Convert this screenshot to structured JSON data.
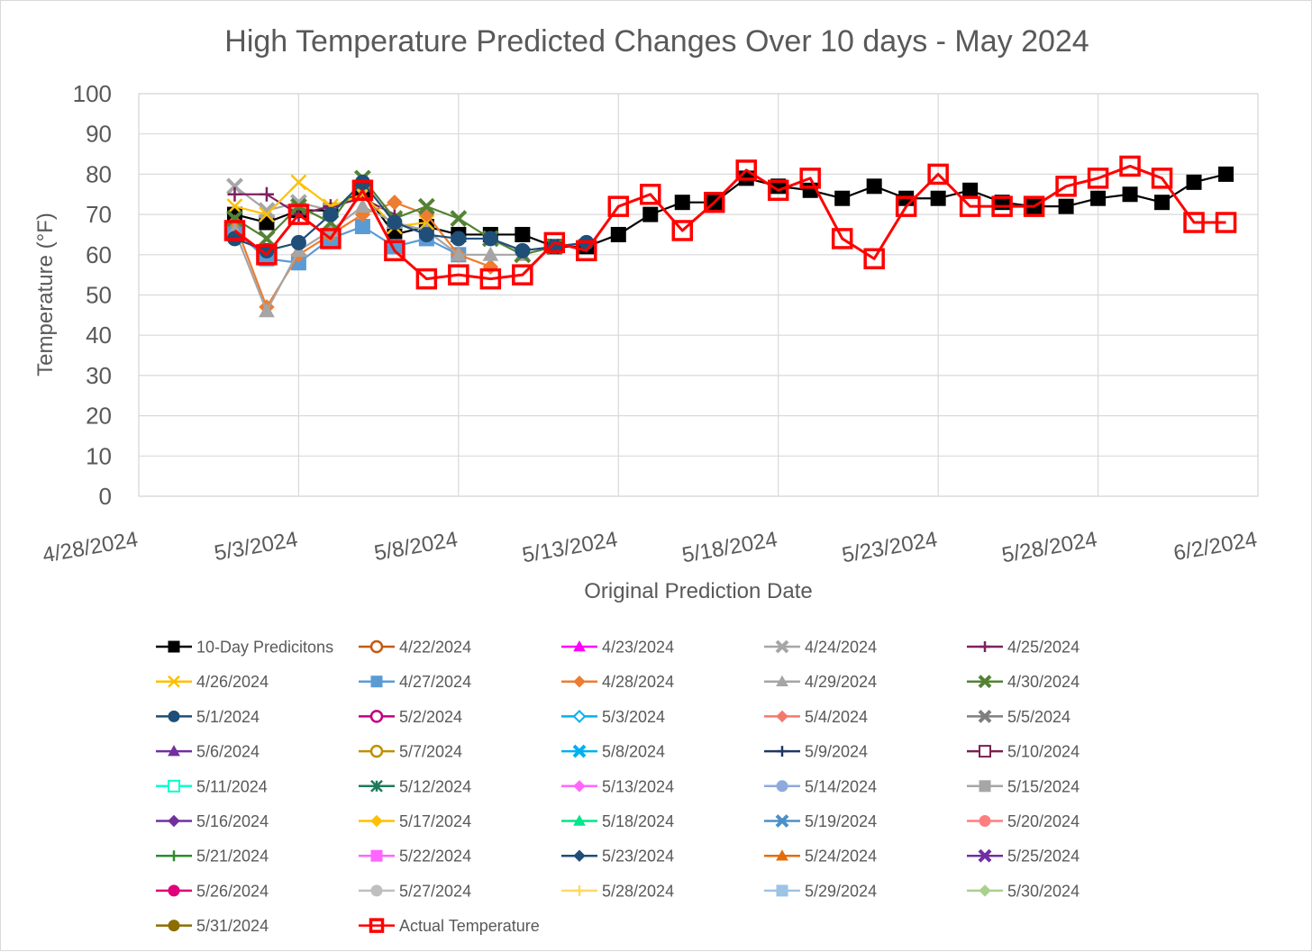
{
  "chart_data": {
    "type": "line",
    "title": "High Temperature Predicted Changes Over 10 days - May 2024",
    "xlabel": "Original Prediction Date",
    "ylabel": "Temperature (°F)",
    "ylim": [
      0,
      100
    ],
    "yticks": [
      "0",
      "10",
      "20",
      "30",
      "40",
      "50",
      "60",
      "70",
      "80",
      "90",
      "100"
    ],
    "xlim_day": [
      0,
      35
    ],
    "xticks": [
      {
        "label": "4/28/2024",
        "day": 0
      },
      {
        "label": "5/3/2024",
        "day": 5
      },
      {
        "label": "5/8/2024",
        "day": 10
      },
      {
        "label": "5/13/2024",
        "day": 15
      },
      {
        "label": "5/18/2024",
        "day": 20
      },
      {
        "label": "5/23/2024",
        "day": 25
      },
      {
        "label": "5/28/2024",
        "day": 30
      },
      {
        "label": "6/2/2024",
        "day": 35
      }
    ],
    "x_day_note": "x values are days since 4/28/2024",
    "series": [
      {
        "name": "10-Day Predicitons",
        "color": "#000000",
        "marker": "square-filled",
        "x": [
          3,
          4,
          5,
          6,
          7,
          8,
          9,
          10,
          11,
          12,
          13,
          14,
          15,
          16,
          17,
          18,
          19,
          20,
          21,
          22,
          23,
          24,
          25,
          26,
          27,
          28,
          29,
          30,
          31,
          32,
          33,
          34
        ],
        "y": [
          70,
          68,
          71,
          71,
          76,
          65,
          67,
          65,
          65,
          65,
          62,
          62,
          65,
          70,
          73,
          73,
          79,
          77,
          76,
          74,
          77,
          74,
          74,
          76,
          73,
          72,
          72,
          74,
          75,
          73,
          78,
          80
        ]
      },
      {
        "name": "4/22/2024",
        "color": "#c55a11",
        "marker": "circle-open",
        "x": [],
        "y": []
      },
      {
        "name": "4/23/2024",
        "color": "#ff00ff",
        "marker": "triangle-filled",
        "x": [],
        "y": []
      },
      {
        "name": "4/24/2024",
        "color": "#a6a6a6",
        "marker": "x-thick",
        "x": [
          3,
          4,
          5,
          6,
          7
        ],
        "y": [
          77,
          71,
          73,
          71,
          75
        ]
      },
      {
        "name": "4/25/2024",
        "color": "#7f2060",
        "marker": "plus",
        "x": [
          3,
          4,
          5,
          6,
          7,
          8
        ],
        "y": [
          75,
          75,
          70,
          72,
          74,
          70
        ]
      },
      {
        "name": "4/26/2024",
        "color": "#ffc000",
        "marker": "x",
        "x": [
          3,
          4,
          5,
          6,
          7,
          8,
          9
        ],
        "y": [
          72,
          70,
          78,
          72,
          75,
          67,
          68
        ]
      },
      {
        "name": "4/27/2024",
        "color": "#5b9bd5",
        "marker": "square-filled",
        "x": [
          3,
          4,
          5,
          6,
          7,
          8,
          9,
          10
        ],
        "y": [
          66,
          59,
          58,
          64,
          67,
          62,
          64,
          60
        ]
      },
      {
        "name": "4/28/2024",
        "color": "#ed7d31",
        "marker": "diamond-filled",
        "x": [
          3,
          4,
          5,
          6,
          7,
          8,
          9,
          10,
          11
        ],
        "y": [
          68,
          47,
          60,
          65,
          70,
          73,
          70,
          60,
          57
        ]
      },
      {
        "name": "4/29/2024",
        "color": "#a5a5a5",
        "marker": "triangle-filled",
        "x": [
          3,
          4,
          5,
          6,
          7,
          8,
          9,
          10,
          11,
          12
        ],
        "y": [
          66,
          46,
          61,
          66,
          72,
          68,
          66,
          60,
          60,
          60
        ]
      },
      {
        "name": "4/30/2024",
        "color": "#548235",
        "marker": "x-thick",
        "x": [
          3,
          4,
          5,
          6,
          7,
          8,
          9,
          10,
          11,
          12,
          13
        ],
        "y": [
          69,
          64,
          72,
          68,
          79,
          69,
          72,
          69,
          64,
          60,
          62
        ]
      },
      {
        "name": "5/1/2024",
        "color": "#1f4e79",
        "marker": "circle-filled",
        "x": [
          3,
          4,
          5,
          6,
          7,
          8,
          9,
          10,
          11,
          12,
          13,
          14
        ],
        "y": [
          64,
          61,
          63,
          70,
          78,
          68,
          65,
          64,
          64,
          61,
          62,
          63
        ]
      },
      {
        "name": "5/2/2024",
        "color": "#c00080",
        "marker": "circle-open",
        "x": [],
        "y": []
      },
      {
        "name": "5/3/2024",
        "color": "#00b0f0",
        "marker": "diamond-open",
        "x": [],
        "y": []
      },
      {
        "name": "5/4/2024",
        "color": "#f4796b",
        "marker": "diamond-filled",
        "x": [],
        "y": []
      },
      {
        "name": "5/5/2024",
        "color": "#7f7f7f",
        "marker": "x-thick",
        "x": [],
        "y": []
      },
      {
        "name": "5/6/2024",
        "color": "#7030a0",
        "marker": "triangle-filled",
        "x": [],
        "y": []
      },
      {
        "name": "5/7/2024",
        "color": "#bf9000",
        "marker": "circle-open",
        "x": [],
        "y": []
      },
      {
        "name": "5/8/2024",
        "color": "#00b0f0",
        "marker": "x-thick",
        "x": [],
        "y": []
      },
      {
        "name": "5/9/2024",
        "color": "#203864",
        "marker": "plus",
        "x": [],
        "y": []
      },
      {
        "name": "5/10/2024",
        "color": "#7b2150",
        "marker": "square-open",
        "x": [],
        "y": []
      },
      {
        "name": "5/11/2024",
        "color": "#00ffcc",
        "marker": "square-open",
        "x": [],
        "y": []
      },
      {
        "name": "5/12/2024",
        "color": "#1f7a5a",
        "marker": "asterisk",
        "x": [],
        "y": []
      },
      {
        "name": "5/13/2024",
        "color": "#ff66ff",
        "marker": "diamond-filled",
        "x": [],
        "y": []
      },
      {
        "name": "5/14/2024",
        "color": "#8faadc",
        "marker": "circle-filled",
        "x": [],
        "y": []
      },
      {
        "name": "5/15/2024",
        "color": "#a6a6a6",
        "marker": "square-filled",
        "x": [],
        "y": []
      },
      {
        "name": "5/16/2024",
        "color": "#7030a0",
        "marker": "diamond-filled",
        "x": [],
        "y": []
      },
      {
        "name": "5/17/2024",
        "color": "#ffc000",
        "marker": "diamond-filled",
        "x": [],
        "y": []
      },
      {
        "name": "5/18/2024",
        "color": "#00e68a",
        "marker": "triangle-filled",
        "x": [],
        "y": []
      },
      {
        "name": "5/19/2024",
        "color": "#4a90c8",
        "marker": "x-thick",
        "x": [],
        "y": []
      },
      {
        "name": "5/20/2024",
        "color": "#ff7f7f",
        "marker": "circle-filled",
        "x": [],
        "y": []
      },
      {
        "name": "5/21/2024",
        "color": "#2e8b2e",
        "marker": "plus",
        "x": [],
        "y": []
      },
      {
        "name": "5/22/2024",
        "color": "#ff66ff",
        "marker": "square-filled",
        "x": [],
        "y": []
      },
      {
        "name": "5/23/2024",
        "color": "#1f4e79",
        "marker": "diamond-filled",
        "x": [],
        "y": []
      },
      {
        "name": "5/24/2024",
        "color": "#e46c0a",
        "marker": "triangle-filled",
        "x": [],
        "y": []
      },
      {
        "name": "5/25/2024",
        "color": "#7030a0",
        "marker": "x-thick",
        "x": [],
        "y": []
      },
      {
        "name": "5/26/2024",
        "color": "#e0007a",
        "marker": "circle-filled",
        "x": [],
        "y": []
      },
      {
        "name": "5/27/2024",
        "color": "#bfbfbf",
        "marker": "circle-filled",
        "x": [],
        "y": []
      },
      {
        "name": "5/28/2024",
        "color": "#ffd966",
        "marker": "plus",
        "x": [],
        "y": []
      },
      {
        "name": "5/29/2024",
        "color": "#9dc3e6",
        "marker": "square-filled",
        "x": [],
        "y": []
      },
      {
        "name": "5/30/2024",
        "color": "#a9d18e",
        "marker": "diamond-filled",
        "x": [],
        "y": []
      },
      {
        "name": "5/31/2024",
        "color": "#8c6d00",
        "marker": "circle-filled",
        "x": [],
        "y": []
      },
      {
        "name": "Actual Temperature",
        "color": "#ff0000",
        "marker": "square-open-thick",
        "x": [
          3,
          4,
          5,
          6,
          7,
          8,
          9,
          10,
          11,
          12,
          13,
          14,
          15,
          16,
          17,
          18,
          19,
          20,
          21,
          22,
          23,
          24,
          25,
          26,
          27,
          28,
          29,
          30,
          31,
          32,
          33,
          34
        ],
        "y": [
          66,
          60,
          70,
          64,
          76,
          61,
          54,
          55,
          54,
          55,
          63,
          61,
          72,
          75,
          66,
          73,
          81,
          76,
          79,
          64,
          59,
          72,
          80,
          72,
          72,
          72,
          77,
          79,
          82,
          79,
          68,
          68
        ]
      }
    ]
  }
}
